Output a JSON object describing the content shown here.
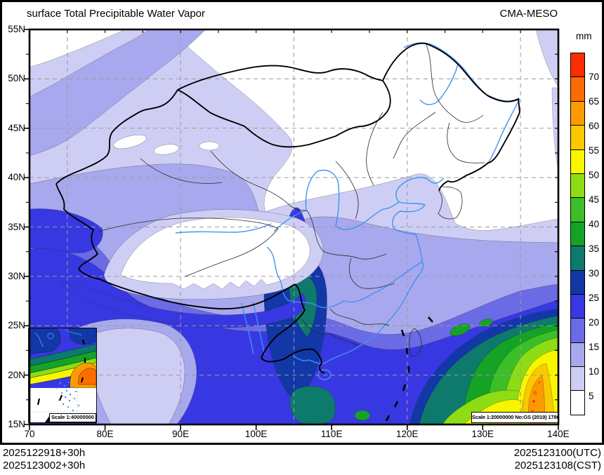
{
  "header": {
    "title": "surface Total Precipitable Water Vapor",
    "model": "CMA-MESO"
  },
  "colorbar": {
    "unit": "mm",
    "tick_labels": [
      "70",
      "65",
      "60",
      "55",
      "50",
      "45",
      "40",
      "35",
      "30",
      "25",
      "20",
      "15",
      "10",
      "5"
    ],
    "cells": [
      {
        "range": "gt70",
        "color": "#FB2C00"
      },
      {
        "range": "65-70",
        "color": "#FB6D00"
      },
      {
        "range": "60-65",
        "color": "#FB9B00"
      },
      {
        "range": "55-60",
        "color": "#FBC900"
      },
      {
        "range": "50-55",
        "color": "#F8F500"
      },
      {
        "range": "45-50",
        "color": "#8EDC14"
      },
      {
        "range": "40-45",
        "color": "#3CBE28"
      },
      {
        "range": "35-40",
        "color": "#14A326"
      },
      {
        "range": "30-35",
        "color": "#0D7A6B"
      },
      {
        "range": "25-30",
        "color": "#1238A8"
      },
      {
        "range": "20-25",
        "color": "#3838E2"
      },
      {
        "range": "15-20",
        "color": "#6B6BE6"
      },
      {
        "range": "10-15",
        "color": "#A8A8EE"
      },
      {
        "range": "5-10",
        "color": "#CECEF5"
      },
      {
        "range": "lt5",
        "color": "#FFFFFF"
      }
    ]
  },
  "axes": {
    "lat_labels": [
      "55N",
      "50N",
      "45N",
      "40N",
      "35N",
      "30N",
      "25N",
      "20N",
      "15N"
    ],
    "lon_labels": [
      "70",
      "80E",
      "90E",
      "100E",
      "110E",
      "120E",
      "130E",
      "140E"
    ]
  },
  "map": {
    "scale_note": "Scale 1:20000000 No:GS (2019) 1786",
    "inset_scale_note": "Scale 1:40000000"
  },
  "footer": {
    "init_utc": "2025122918+30h",
    "init_cst": "2025123002+30h",
    "valid_utc": "2025123100(UTC)",
    "valid_cst": "2025123108(CST)"
  }
}
